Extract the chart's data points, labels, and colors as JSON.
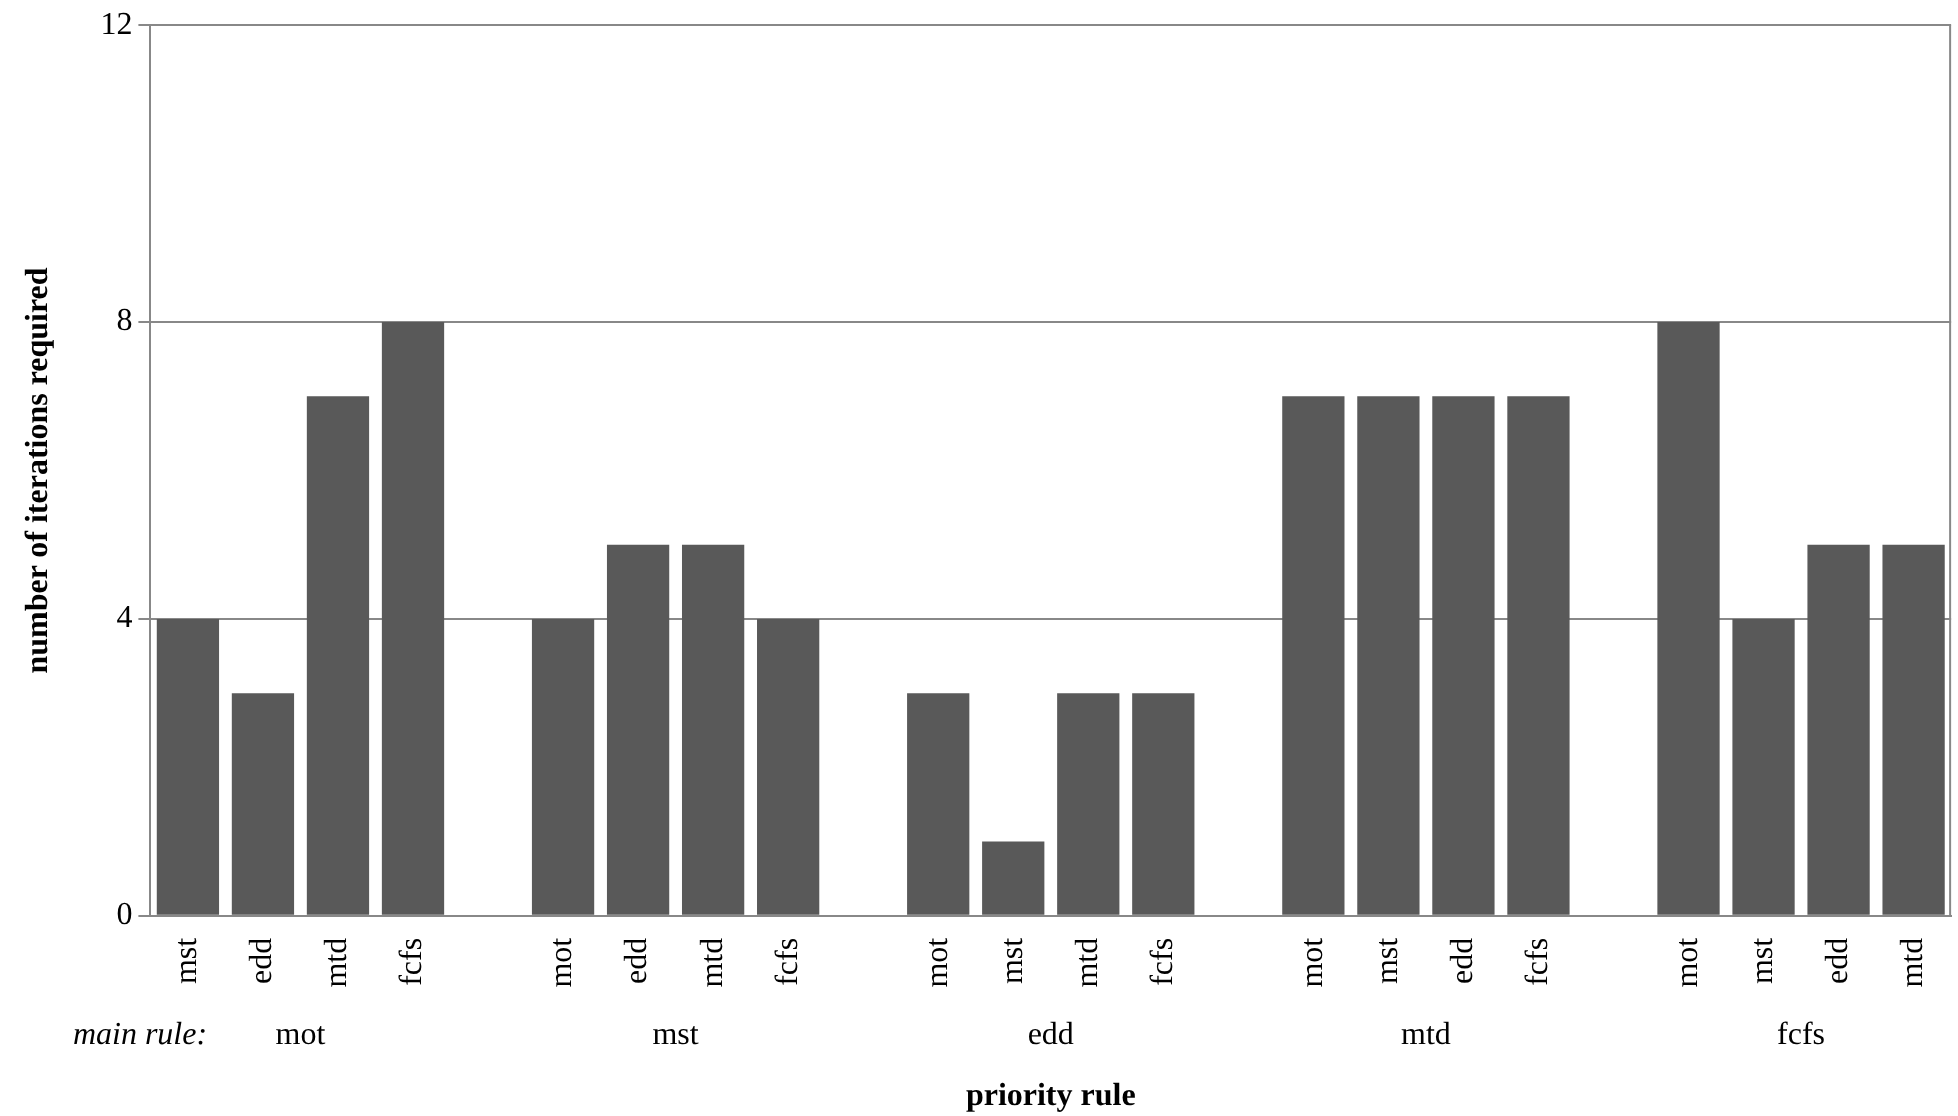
{
  "chart_data": {
    "type": "bar",
    "xlabel": "priority rule",
    "ylabel": "number of iterations required",
    "categories": [
      "mst",
      "edd",
      "mtd",
      "fcfs",
      null,
      "mot",
      "edd",
      "mtd",
      "fcfs",
      null,
      "mot",
      "mst",
      "mtd",
      "fcfs",
      null,
      "mot",
      "mst",
      "edd",
      "fcfs",
      null,
      "mot",
      "mst",
      "edd",
      "mtd"
    ],
    "values": [
      4,
      3,
      7,
      8,
      null,
      4,
      5,
      5,
      4,
      null,
      3,
      1,
      3,
      3,
      null,
      7,
      7,
      7,
      7,
      null,
      8,
      4,
      5,
      5
    ],
    "color": "#595959",
    "ylim": [
      0,
      12
    ],
    "yticks": [
      0,
      4,
      8,
      12
    ],
    "grid": "y",
    "legend": false,
    "annotations": [
      "main rule:",
      "mot",
      "mst",
      "edd",
      "mtd",
      "fcfs"
    ]
  }
}
